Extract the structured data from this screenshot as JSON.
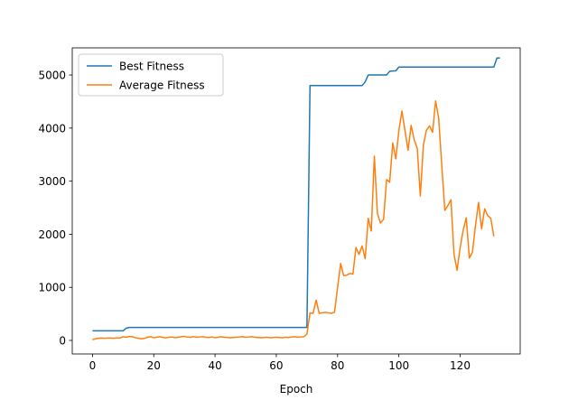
{
  "chart_data": {
    "type": "line",
    "title": "",
    "xlabel": "Epoch",
    "ylabel": "",
    "xlim": [
      -6.6,
      139.6
    ],
    "ylim": [
      -255,
      5511
    ],
    "xticks": [
      0,
      20,
      40,
      60,
      80,
      100,
      120
    ],
    "yticks": [
      0,
      1000,
      2000,
      3000,
      4000,
      5000
    ],
    "grid": false,
    "legend_position": "top-left",
    "series": [
      {
        "name": "Best Fitness",
        "color": "#1f77b4",
        "points": [
          [
            0,
            180
          ],
          [
            10,
            180
          ],
          [
            11,
            230
          ],
          [
            12,
            245
          ],
          [
            70,
            245
          ],
          [
            71,
            4800
          ],
          [
            88,
            4800
          ],
          [
            89,
            4870
          ],
          [
            90,
            5000
          ],
          [
            96,
            5000
          ],
          [
            97,
            5070
          ],
          [
            99,
            5080
          ],
          [
            100,
            5150
          ],
          [
            131,
            5150
          ],
          [
            132,
            5320
          ],
          [
            133,
            5320
          ]
        ]
      },
      {
        "name": "Average Fitness",
        "color": "#ff7f0e",
        "points": [
          [
            0,
            15
          ],
          [
            1,
            30
          ],
          [
            2,
            40
          ],
          [
            3,
            45
          ],
          [
            4,
            40
          ],
          [
            5,
            45
          ],
          [
            6,
            45
          ],
          [
            7,
            40
          ],
          [
            8,
            50
          ],
          [
            9,
            45
          ],
          [
            10,
            70
          ],
          [
            11,
            60
          ],
          [
            12,
            75
          ],
          [
            13,
            70
          ],
          [
            14,
            50
          ],
          [
            15,
            40
          ],
          [
            16,
            30
          ],
          [
            17,
            40
          ],
          [
            18,
            60
          ],
          [
            19,
            70
          ],
          [
            20,
            50
          ],
          [
            21,
            60
          ],
          [
            22,
            70
          ],
          [
            23,
            55
          ],
          [
            24,
            50
          ],
          [
            25,
            60
          ],
          [
            26,
            65
          ],
          [
            27,
            50
          ],
          [
            28,
            60
          ],
          [
            29,
            70
          ],
          [
            30,
            75
          ],
          [
            31,
            65
          ],
          [
            32,
            60
          ],
          [
            33,
            70
          ],
          [
            34,
            60
          ],
          [
            35,
            65
          ],
          [
            36,
            70
          ],
          [
            37,
            60
          ],
          [
            38,
            55
          ],
          [
            39,
            65
          ],
          [
            40,
            50
          ],
          [
            41,
            60
          ],
          [
            42,
            70
          ],
          [
            43,
            60
          ],
          [
            44,
            55
          ],
          [
            45,
            50
          ],
          [
            46,
            55
          ],
          [
            47,
            60
          ],
          [
            48,
            65
          ],
          [
            49,
            70
          ],
          [
            50,
            60
          ],
          [
            51,
            65
          ],
          [
            52,
            70
          ],
          [
            53,
            60
          ],
          [
            54,
            55
          ],
          [
            55,
            50
          ],
          [
            56,
            55
          ],
          [
            57,
            60
          ],
          [
            58,
            50
          ],
          [
            59,
            55
          ],
          [
            60,
            60
          ],
          [
            61,
            55
          ],
          [
            62,
            50
          ],
          [
            63,
            60
          ],
          [
            64,
            55
          ],
          [
            65,
            65
          ],
          [
            66,
            70
          ],
          [
            67,
            60
          ],
          [
            68,
            65
          ],
          [
            69,
            70
          ],
          [
            70,
            120
          ],
          [
            71,
            520
          ],
          [
            72,
            510
          ],
          [
            73,
            760
          ],
          [
            74,
            510
          ],
          [
            75,
            520
          ],
          [
            76,
            530
          ],
          [
            77,
            520
          ],
          [
            78,
            510
          ],
          [
            79,
            530
          ],
          [
            80,
            1000
          ],
          [
            81,
            1450
          ],
          [
            82,
            1220
          ],
          [
            83,
            1230
          ],
          [
            84,
            1260
          ],
          [
            85,
            1250
          ],
          [
            86,
            1750
          ],
          [
            87,
            1620
          ],
          [
            88,
            1780
          ],
          [
            89,
            1540
          ],
          [
            90,
            2300
          ],
          [
            91,
            2060
          ],
          [
            92,
            3470
          ],
          [
            93,
            2390
          ],
          [
            94,
            2210
          ],
          [
            95,
            2280
          ],
          [
            96,
            3030
          ],
          [
            97,
            2980
          ],
          [
            98,
            3720
          ],
          [
            99,
            3420
          ],
          [
            100,
            3950
          ],
          [
            101,
            4320
          ],
          [
            102,
            3950
          ],
          [
            103,
            3580
          ],
          [
            104,
            4050
          ],
          [
            105,
            3780
          ],
          [
            106,
            3620
          ],
          [
            107,
            2720
          ],
          [
            108,
            3680
          ],
          [
            109,
            3960
          ],
          [
            110,
            4040
          ],
          [
            111,
            3920
          ],
          [
            112,
            4510
          ],
          [
            113,
            4180
          ],
          [
            114,
            3300
          ],
          [
            115,
            2450
          ],
          [
            116,
            2540
          ],
          [
            117,
            2650
          ],
          [
            118,
            1620
          ],
          [
            119,
            1320
          ],
          [
            120,
            1750
          ],
          [
            121,
            2080
          ],
          [
            122,
            2310
          ],
          [
            123,
            1550
          ],
          [
            124,
            1660
          ],
          [
            125,
            2160
          ],
          [
            126,
            2600
          ],
          [
            127,
            2100
          ],
          [
            128,
            2480
          ],
          [
            129,
            2350
          ],
          [
            130,
            2300
          ],
          [
            131,
            1960
          ]
        ]
      }
    ]
  }
}
